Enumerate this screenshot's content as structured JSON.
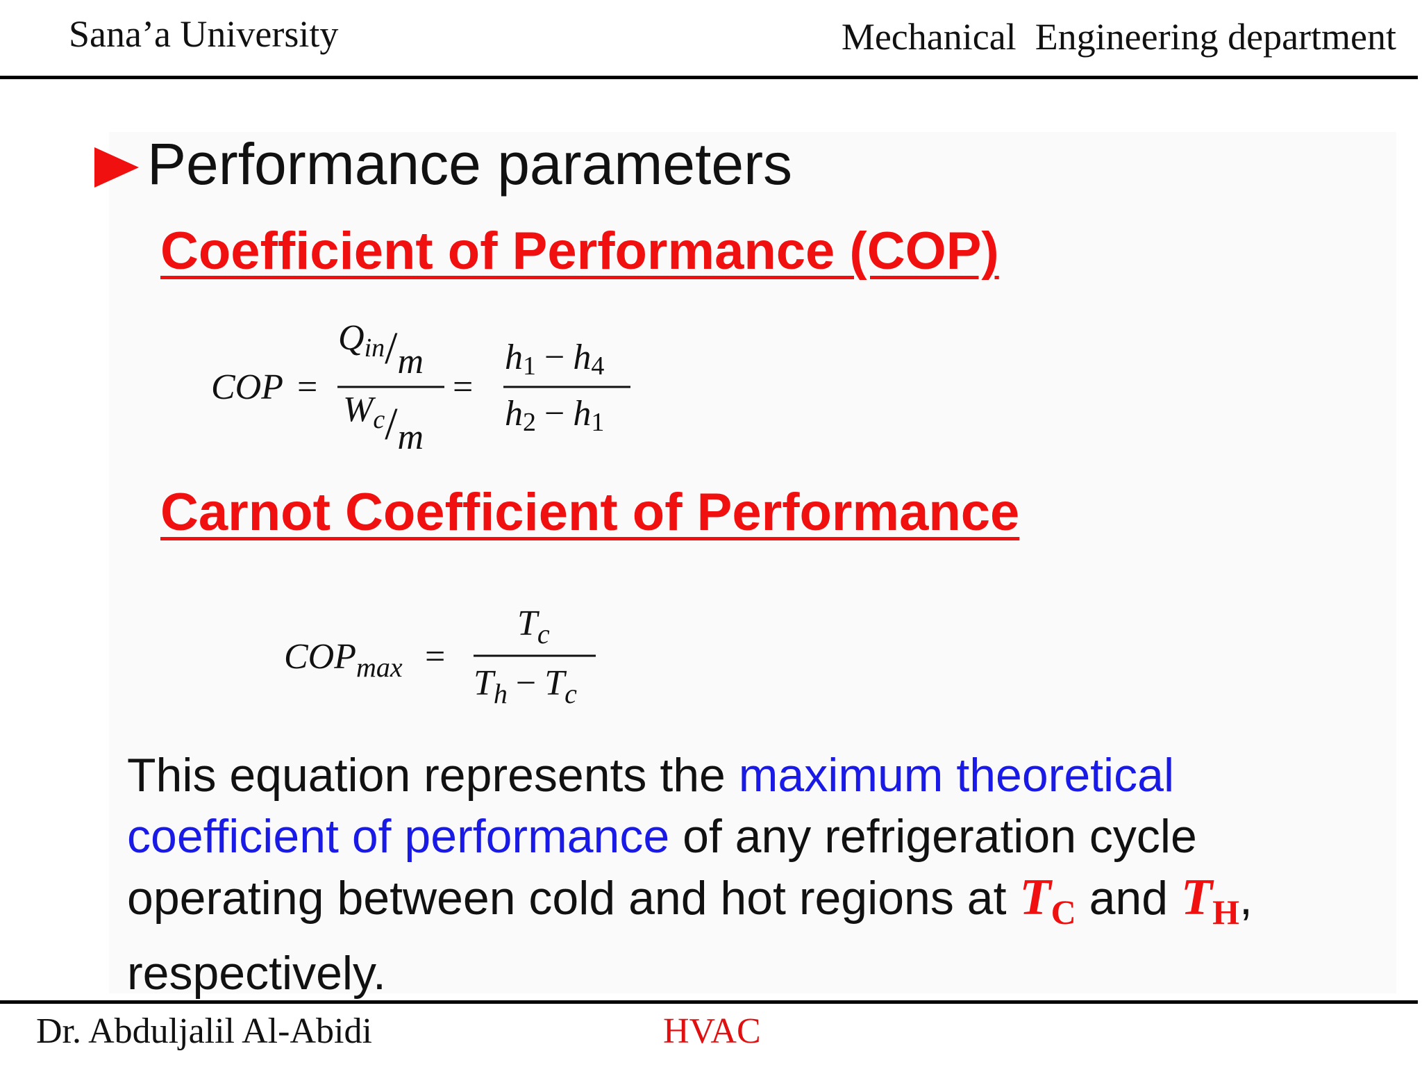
{
  "header": {
    "left": "Sana’a University",
    "right": "Mechanical  Engineering department"
  },
  "heading": "Performance parameters",
  "sections": [
    {
      "title": "Coefficient of Performance (COP)",
      "equation": {
        "lhs": "COP",
        "eq": "=",
        "frac1_num": [
          "Q",
          "in",
          "/",
          "m"
        ],
        "frac1_den": [
          "W",
          "c",
          "/",
          "m"
        ],
        "eq2": "=",
        "frac2_num": [
          "h",
          "1",
          "−",
          "h",
          "4"
        ],
        "frac2_den": [
          "h",
          "2",
          "−",
          "h",
          "1"
        ]
      }
    },
    {
      "title": "Carnot Coefficient of Performance",
      "equation": {
        "lhs": "COP",
        "lhs_sub": "max",
        "eq": "=",
        "num": [
          "T",
          "c"
        ],
        "den": [
          "T",
          "h",
          "−",
          "T",
          "c"
        ]
      }
    }
  ],
  "paragraph": [
    "This equation represents the ",
    "maximum theoretical coefficient of performance",
    " of any refrigeration cycle operating between cold and hot regions at ",
    "T",
    "C",
    " and ",
    "T",
    "H",
    ",",
    " respectively."
  ],
  "footer": {
    "left": "Dr. Abduljalil Al-Abidi",
    "center": "HVAC"
  }
}
